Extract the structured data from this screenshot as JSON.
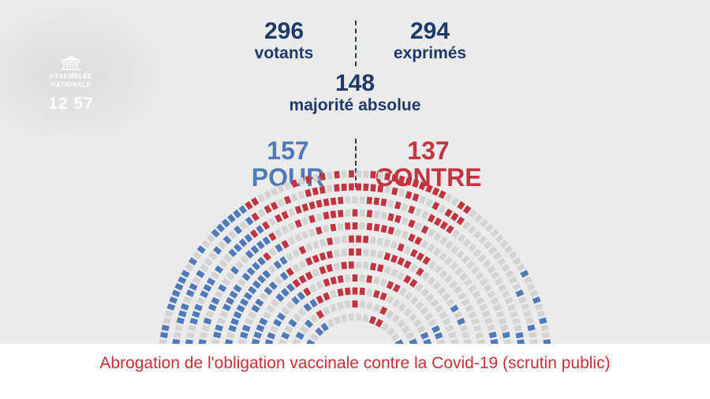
{
  "channel": {
    "name_line1": "ASSEMBLÉE",
    "name_line2": "NATIONALE",
    "time": "12 57"
  },
  "stats": {
    "votants": {
      "value": "296",
      "label": "votants"
    },
    "exprimes": {
      "value": "294",
      "label": "exprimés"
    },
    "majorite": {
      "value": "148",
      "label": "majorité absolue"
    }
  },
  "result": {
    "pour": {
      "value": "157",
      "label": "POUR"
    },
    "contre": {
      "value": "137",
      "label": "CONTRE"
    }
  },
  "caption": "Abrogation de l'obligation vaccinale contre la Covid-19 (scrutin public)",
  "colors": {
    "navy": "#1f3a68",
    "pour": "#4f79b8",
    "contre": "#c23440",
    "empty": "#d3d3d3"
  }
}
